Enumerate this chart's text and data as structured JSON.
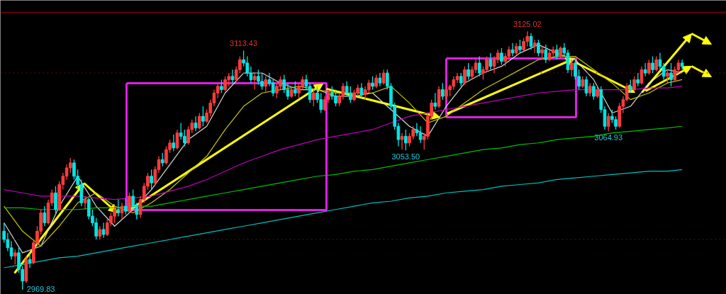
{
  "chart_data": {
    "type": "candlestick",
    "categories": [
      null,
      null,
      null,
      null,
      null,
      null,
      null,
      null,
      null,
      null,
      null,
      null,
      null,
      null,
      null,
      null,
      null,
      null,
      null,
      null,
      null,
      null,
      null,
      null,
      null,
      null,
      null,
      null,
      null,
      null,
      null,
      null,
      null,
      null,
      null,
      null,
      null,
      null,
      null,
      null,
      null,
      null,
      null,
      null,
      null,
      null,
      null,
      null,
      null,
      null,
      null,
      null,
      null,
      null,
      null,
      null,
      null,
      null,
      null,
      null,
      null,
      null,
      null,
      null,
      null,
      null,
      null,
      null,
      null,
      null,
      null,
      null,
      null,
      null,
      null,
      null,
      null,
      null,
      null,
      null,
      null,
      null,
      null,
      null,
      null,
      null,
      null,
      null,
      null,
      null,
      null,
      null,
      null,
      null,
      null,
      null,
      null,
      null,
      null,
      null,
      null,
      null,
      null,
      null,
      null,
      null,
      null,
      null,
      null,
      null,
      null,
      null,
      null,
      null,
      null,
      null,
      null,
      null,
      null,
      null,
      null,
      null,
      null,
      null,
      null,
      null,
      null,
      null,
      null,
      null,
      null,
      null,
      null,
      null,
      null,
      null,
      null,
      null,
      null,
      null,
      null,
      null,
      null,
      null,
      null,
      null,
      null,
      null,
      null,
      null,
      null,
      null,
      null,
      null,
      null,
      null,
      null,
      null,
      null,
      null,
      null,
      null,
      null,
      null,
      null,
      null,
      null,
      null,
      null,
      null,
      null,
      null,
      null,
      null,
      null,
      null,
      null,
      null,
      null,
      null,
      null,
      null,
      null,
      null,
      null
    ],
    "ohlc": [
      [
        3005,
        3010,
        2998,
        3000
      ],
      [
        3000,
        3004,
        2993,
        2995
      ],
      [
        2995,
        2999,
        2988,
        2990
      ],
      [
        2990,
        2994,
        2985,
        2992
      ],
      [
        2992,
        2995,
        2980,
        2982
      ],
      [
        2982,
        2984,
        2969.83,
        2975
      ],
      [
        2975,
        2990,
        2974,
        2988
      ],
      [
        2988,
        2992,
        2983,
        2986
      ],
      [
        2986,
        3000,
        2985,
        2998
      ],
      [
        2998,
        3008,
        2996,
        3005
      ],
      [
        3005,
        3018,
        3003,
        3016
      ],
      [
        3016,
        3020,
        3008,
        3010
      ],
      [
        3010,
        3024,
        3009,
        3022
      ],
      [
        3022,
        3030,
        3020,
        3028
      ],
      [
        3028,
        3032,
        3015,
        3018
      ],
      [
        3018,
        3035,
        3017,
        3033
      ],
      [
        3033,
        3040,
        3030,
        3038
      ],
      [
        3038,
        3045,
        3036,
        3043
      ],
      [
        3043,
        3049,
        3040,
        3046
      ],
      [
        3046,
        3048,
        3036,
        3038
      ],
      [
        3038,
        3042,
        3030,
        3033
      ],
      [
        3033,
        3036,
        3020,
        3022
      ],
      [
        3022,
        3026,
        3018,
        3024
      ],
      [
        3024,
        3025,
        3012,
        3014
      ],
      [
        3014,
        3018,
        3008,
        3010
      ],
      [
        3010,
        3013,
        3000,
        3002
      ],
      [
        3002,
        3008,
        3000,
        3006
      ],
      [
        3006,
        3010,
        3001,
        3003
      ],
      [
        3003,
        3012,
        3002,
        3010
      ],
      [
        3010,
        3016,
        3008,
        3014
      ],
      [
        3014,
        3020,
        3010,
        3018
      ],
      [
        3018,
        3024,
        3014,
        3016
      ],
      [
        3016,
        3022,
        3012,
        3020
      ],
      [
        3020,
        3025,
        3015,
        3017
      ],
      [
        3017,
        3028,
        3016,
        3026
      ],
      [
        3026,
        3030,
        3018,
        3020
      ],
      [
        3020,
        3022,
        3012,
        3015
      ],
      [
        3015,
        3026,
        3013,
        3024
      ],
      [
        3024,
        3034,
        3022,
        3032
      ],
      [
        3032,
        3040,
        3030,
        3038
      ],
      [
        3038,
        3042,
        3030,
        3034
      ],
      [
        3034,
        3044,
        3032,
        3042
      ],
      [
        3042,
        3050,
        3040,
        3048
      ],
      [
        3048,
        3052,
        3044,
        3046
      ],
      [
        3046,
        3056,
        3045,
        3054
      ],
      [
        3054,
        3060,
        3052,
        3058
      ],
      [
        3058,
        3063,
        3053,
        3055
      ],
      [
        3055,
        3066,
        3054,
        3064
      ],
      [
        3064,
        3070,
        3060,
        3062
      ],
      [
        3062,
        3066,
        3056,
        3058
      ],
      [
        3058,
        3068,
        3057,
        3066
      ],
      [
        3066,
        3072,
        3064,
        3070
      ],
      [
        3070,
        3074,
        3065,
        3067
      ],
      [
        3067,
        3076,
        3066,
        3074
      ],
      [
        3074,
        3080,
        3068,
        3071
      ],
      [
        3071,
        3078,
        3070,
        3076
      ],
      [
        3076,
        3084,
        3074,
        3082
      ],
      [
        3082,
        3090,
        3080,
        3088
      ],
      [
        3088,
        3094,
        3085,
        3092
      ],
      [
        3092,
        3096,
        3088,
        3090
      ],
      [
        3090,
        3098,
        3089,
        3096
      ],
      [
        3096,
        3100,
        3092,
        3098
      ],
      [
        3098,
        3102,
        3094,
        3096
      ],
      [
        3096,
        3104,
        3095,
        3102
      ],
      [
        3102,
        3110,
        3100,
        3108
      ],
      [
        3108,
        3113.43,
        3104,
        3106
      ],
      [
        3106,
        3110,
        3098,
        3100
      ],
      [
        3100,
        3104,
        3094,
        3096
      ],
      [
        3096,
        3100,
        3090,
        3098
      ],
      [
        3098,
        3102,
        3093,
        3095
      ],
      [
        3095,
        3100,
        3090,
        3092
      ],
      [
        3092,
        3098,
        3088,
        3096
      ],
      [
        3096,
        3100,
        3092,
        3094
      ],
      [
        3094,
        3096,
        3086,
        3088
      ],
      [
        3088,
        3094,
        3085,
        3092
      ],
      [
        3092,
        3098,
        3090,
        3096
      ],
      [
        3096,
        3099,
        3088,
        3090
      ],
      [
        3090,
        3094,
        3084,
        3086
      ],
      [
        3086,
        3092,
        3085,
        3090
      ],
      [
        3090,
        3095,
        3086,
        3088
      ],
      [
        3088,
        3094,
        3085,
        3092
      ],
      [
        3092,
        3098,
        3090,
        3096
      ],
      [
        3096,
        3099,
        3090,
        3092
      ],
      [
        3092,
        3094,
        3082,
        3084
      ],
      [
        3084,
        3090,
        3080,
        3088
      ],
      [
        3088,
        3092,
        3082,
        3084
      ],
      [
        3084,
        3088,
        3076,
        3078
      ],
      [
        3078,
        3086,
        3077,
        3084
      ],
      [
        3084,
        3090,
        3082,
        3088
      ],
      [
        3088,
        3092,
        3084,
        3086
      ],
      [
        3086,
        3090,
        3080,
        3082
      ],
      [
        3082,
        3088,
        3080,
        3086
      ],
      [
        3086,
        3094,
        3084,
        3092
      ],
      [
        3092,
        3095,
        3086,
        3088
      ],
      [
        3088,
        3092,
        3082,
        3084
      ],
      [
        3084,
        3090,
        3083,
        3088
      ],
      [
        3088,
        3093,
        3086,
        3091
      ],
      [
        3091,
        3094,
        3085,
        3087
      ],
      [
        3087,
        3092,
        3084,
        3090
      ],
      [
        3090,
        3096,
        3088,
        3094
      ],
      [
        3094,
        3098,
        3090,
        3092
      ],
      [
        3092,
        3099,
        3091,
        3097
      ],
      [
        3097,
        3100,
        3092,
        3094
      ],
      [
        3094,
        3102,
        3093,
        3100
      ],
      [
        3100,
        3102,
        3090,
        3092
      ],
      [
        3092,
        3094,
        3078,
        3080
      ],
      [
        3080,
        3082,
        3066,
        3068
      ],
      [
        3068,
        3070,
        3056,
        3060
      ],
      [
        3060,
        3064,
        3054,
        3062
      ],
      [
        3062,
        3066,
        3053.5,
        3058
      ],
      [
        3058,
        3064,
        3056,
        3062
      ],
      [
        3062,
        3068,
        3060,
        3066
      ],
      [
        3066,
        3070,
        3062,
        3064
      ],
      [
        3064,
        3068,
        3058,
        3060
      ],
      [
        3060,
        3064,
        3054,
        3062
      ],
      [
        3062,
        3076,
        3060,
        3074
      ],
      [
        3074,
        3084,
        3072,
        3082
      ],
      [
        3082,
        3088,
        3078,
        3080
      ],
      [
        3080,
        3092,
        3079,
        3090
      ],
      [
        3090,
        3094,
        3084,
        3086
      ],
      [
        3086,
        3092,
        3084,
        3090
      ],
      [
        3090,
        3093,
        3086,
        3092
      ],
      [
        3092,
        3098,
        3090,
        3096
      ],
      [
        3096,
        3100,
        3094,
        3098
      ],
      [
        3098,
        3100,
        3092,
        3094
      ],
      [
        3094,
        3104,
        3093,
        3102
      ],
      [
        3102,
        3106,
        3096,
        3098
      ],
      [
        3098,
        3104,
        3096,
        3102
      ],
      [
        3102,
        3108,
        3100,
        3106
      ],
      [
        3106,
        3110,
        3098,
        3100
      ],
      [
        3100,
        3104,
        3096,
        3102
      ],
      [
        3102,
        3110,
        3101,
        3108
      ],
      [
        3108,
        3112,
        3102,
        3104
      ],
      [
        3104,
        3110,
        3100,
        3108
      ],
      [
        3108,
        3114,
        3106,
        3112
      ],
      [
        3112,
        3115,
        3105,
        3107
      ],
      [
        3107,
        3112,
        3104,
        3110
      ],
      [
        3110,
        3116,
        3108,
        3114
      ],
      [
        3114,
        3118,
        3110,
        3112
      ],
      [
        3112,
        3118,
        3111,
        3116
      ],
      [
        3116,
        3120,
        3112,
        3114
      ],
      [
        3114,
        3121,
        3113,
        3119
      ],
      [
        3119,
        3125.02,
        3116,
        3122
      ],
      [
        3122,
        3124,
        3114,
        3116
      ],
      [
        3116,
        3120,
        3112,
        3118
      ],
      [
        3118,
        3120,
        3110,
        3112
      ],
      [
        3112,
        3116,
        3108,
        3114
      ],
      [
        3114,
        3117,
        3106,
        3108
      ],
      [
        3108,
        3114,
        3107,
        3112
      ],
      [
        3112,
        3116,
        3110,
        3114
      ],
      [
        3114,
        3117,
        3108,
        3110
      ],
      [
        3110,
        3116,
        3109,
        3115
      ],
      [
        3115,
        3118,
        3110,
        3112
      ],
      [
        3112,
        3114,
        3100,
        3102
      ],
      [
        3102,
        3108,
        3098,
        3106
      ],
      [
        3106,
        3108,
        3096,
        3098
      ],
      [
        3098,
        3102,
        3090,
        3092
      ],
      [
        3092,
        3098,
        3091,
        3096
      ],
      [
        3096,
        3098,
        3086,
        3088
      ],
      [
        3088,
        3094,
        3086,
        3092
      ],
      [
        3092,
        3094,
        3084,
        3086
      ],
      [
        3086,
        3092,
        3085,
        3090
      ],
      [
        3090,
        3092,
        3076,
        3078
      ],
      [
        3078,
        3080,
        3066,
        3068
      ],
      [
        3068,
        3076,
        3064.93,
        3074
      ],
      [
        3074,
        3078,
        3070,
        3072
      ],
      [
        3072,
        3074,
        3066,
        3068
      ],
      [
        3068,
        3082,
        3067,
        3080
      ],
      [
        3080,
        3086,
        3076,
        3084
      ],
      [
        3084,
        3094,
        3083,
        3092
      ],
      [
        3092,
        3096,
        3088,
        3090
      ],
      [
        3090,
        3098,
        3089,
        3096
      ],
      [
        3096,
        3100,
        3092,
        3094
      ],
      [
        3094,
        3104,
        3093,
        3102
      ],
      [
        3102,
        3106,
        3098,
        3100
      ],
      [
        3100,
        3108,
        3099,
        3106
      ],
      [
        3106,
        3110,
        3100,
        3102
      ],
      [
        3102,
        3110,
        3101,
        3108
      ],
      [
        3108,
        3112,
        3102,
        3104
      ],
      [
        3104,
        3106,
        3096,
        3098
      ],
      [
        3098,
        3102,
        3094,
        3100
      ],
      [
        3100,
        3106,
        3092,
        3096
      ],
      [
        3096,
        3104,
        3095,
        3102
      ],
      [
        3102,
        3108,
        3100,
        3106
      ],
      [
        3106,
        3108,
        3102,
        3104
      ]
    ],
    "series": [
      {
        "type": "line",
        "color": "#d8d8d8",
        "values": [
          3010,
          null,
          null,
          null,
          null,
          2992,
          null,
          null,
          null,
          null,
          2996,
          null,
          null,
          null,
          null,
          3020,
          null,
          null,
          null,
          null,
          3038,
          null,
          null,
          null,
          null,
          3020,
          null,
          null,
          null,
          null,
          3008,
          null,
          null,
          null,
          null,
          3018,
          null,
          null,
          null,
          null,
          3030,
          null,
          null,
          null,
          null,
          3045,
          null,
          null,
          null,
          null,
          3060,
          null,
          null,
          null,
          null,
          3068,
          null,
          null,
          null,
          null,
          3088,
          null,
          null,
          null,
          null,
          3100,
          null,
          null,
          null,
          null,
          3100,
          null,
          null,
          null,
          null,
          3094,
          null,
          null,
          null,
          null,
          3090,
          null,
          null,
          null,
          null,
          3090,
          null,
          null,
          null,
          null,
          3086,
          null,
          null,
          null,
          null,
          3086,
          null,
          null,
          null,
          null,
          3088,
          null,
          null,
          null,
          null,
          null,
          null,
          null,
          null,
          null,
          3068,
          null,
          null,
          null,
          null,
          3062,
          null,
          null,
          null,
          null,
          3080,
          null,
          null,
          null,
          null,
          3094,
          null,
          null,
          null,
          null,
          3100,
          null,
          null,
          null,
          null,
          3104,
          null,
          null,
          null,
          null,
          3112,
          null,
          null,
          null,
          null,
          3117,
          null,
          null,
          null,
          null,
          3112,
          null,
          null,
          null,
          null,
          3108,
          null,
          null,
          null,
          null,
          3096,
          null,
          null,
          null,
          null,
          3076,
          null,
          null,
          null,
          null,
          3080,
          null,
          null,
          null,
          null,
          3094,
          null,
          null,
          null,
          null,
          3102,
          null,
          null,
          null,
          3100
        ]
      },
      {
        "type": "line",
        "color": "#c8c800",
        "values": [
          3020,
          null,
          null,
          null,
          null,
          3005,
          null,
          null,
          null,
          null,
          2996,
          null,
          null,
          null,
          null,
          3008,
          null,
          null,
          null,
          null,
          3022,
          null,
          null,
          null,
          null,
          3028,
          null,
          null,
          null,
          null,
          3020,
          null,
          null,
          null,
          null,
          3016,
          null,
          null,
          null,
          null,
          3022,
          null,
          null,
          null,
          null,
          3030,
          null,
          null,
          null,
          null,
          3040,
          null,
          null,
          null,
          null,
          3050,
          null,
          null,
          null,
          null,
          3066,
          null,
          null,
          null,
          null,
          3080,
          null,
          null,
          null,
          null,
          3088,
          null,
          null,
          null,
          null,
          3090,
          null,
          null,
          null,
          null,
          3092,
          null,
          null,
          null,
          null,
          3090,
          null,
          null,
          null,
          null,
          3088,
          null,
          null,
          null,
          null,
          3088,
          null,
          null,
          null,
          null,
          3088,
          null,
          null,
          null,
          null,
          3092,
          null,
          null,
          null,
          null,
          3082,
          null,
          null,
          null,
          null,
          3070,
          null,
          null,
          null,
          null,
          3074,
          null,
          null,
          null,
          null,
          3082,
          null,
          null,
          null,
          null,
          3090,
          null,
          null,
          null,
          null,
          3096,
          null,
          null,
          null,
          null,
          3102,
          null,
          null,
          null,
          null,
          3108,
          null,
          null,
          null,
          null,
          3110,
          null,
          null,
          null,
          null,
          3110,
          null,
          null,
          null,
          null,
          3102,
          null,
          null,
          null,
          null,
          3094,
          null,
          null,
          null,
          null,
          3084,
          null,
          null,
          null,
          null,
          3088,
          null,
          null,
          null,
          null,
          3094,
          null,
          null,
          null,
          3096
        ]
      },
      {
        "type": "line",
        "color": "#c000c0",
        "values": [
          3030,
          null,
          null,
          null,
          null,
          3028,
          null,
          null,
          null,
          null,
          3026,
          null,
          null,
          null,
          null,
          3026,
          null,
          null,
          null,
          null,
          3026,
          null,
          null,
          null,
          null,
          3025,
          null,
          null,
          null,
          null,
          3024,
          null,
          null,
          null,
          null,
          3025,
          null,
          null,
          null,
          null,
          3026,
          null,
          null,
          null,
          null,
          3029,
          null,
          null,
          null,
          null,
          3032,
          null,
          null,
          null,
          null,
          3036,
          null,
          null,
          null,
          null,
          3041,
          null,
          null,
          null,
          null,
          3046,
          null,
          null,
          null,
          null,
          3050,
          null,
          null,
          null,
          null,
          3054,
          null,
          null,
          null,
          null,
          3057,
          null,
          null,
          null,
          null,
          3060,
          null,
          null,
          null,
          null,
          3062,
          null,
          null,
          null,
          null,
          3064,
          null,
          null,
          null,
          null,
          3066,
          null,
          null,
          null,
          null,
          3070,
          null,
          null,
          null,
          null,
          3074,
          null,
          null,
          null,
          null,
          3076,
          null,
          null,
          null,
          null,
          3078,
          null,
          null,
          null,
          null,
          3080,
          null,
          null,
          null,
          null,
          3082,
          null,
          null,
          null,
          null,
          3084,
          null,
          null,
          null,
          null,
          3086,
          null,
          null,
          null,
          null,
          3088,
          null,
          null,
          null,
          null,
          3089,
          null,
          null,
          null,
          null,
          3090,
          null,
          null,
          null,
          null,
          3090,
          null,
          null,
          null,
          null,
          3090,
          null,
          null,
          null,
          null,
          3090,
          null,
          null,
          null,
          null,
          3091,
          null,
          null,
          null,
          null,
          3091,
          null,
          null,
          null,
          3092
        ]
      },
      {
        "type": "line",
        "color": "#00c000",
        "values": [
          3019,
          null,
          null,
          null,
          null,
          3019,
          null,
          null,
          null,
          null,
          3018,
          null,
          null,
          null,
          null,
          3018,
          null,
          null,
          null,
          null,
          3018,
          null,
          null,
          null,
          null,
          3019,
          null,
          null,
          null,
          null,
          3019,
          null,
          null,
          null,
          null,
          3020,
          null,
          null,
          null,
          null,
          3020,
          null,
          null,
          null,
          null,
          3022,
          null,
          null,
          null,
          null,
          3024,
          null,
          null,
          null,
          null,
          3026,
          null,
          null,
          null,
          null,
          3028,
          null,
          null,
          null,
          null,
          3030,
          null,
          null,
          null,
          null,
          3032,
          null,
          null,
          null,
          null,
          3034,
          null,
          null,
          null,
          null,
          3036,
          null,
          null,
          null,
          null,
          3038,
          null,
          null,
          null,
          null,
          3039,
          null,
          null,
          null,
          null,
          3041,
          null,
          null,
          null,
          null,
          3042,
          null,
          null,
          null,
          null,
          3044,
          null,
          null,
          null,
          null,
          3046,
          null,
          null,
          null,
          null,
          3048,
          null,
          null,
          null,
          null,
          3050,
          null,
          null,
          null,
          null,
          3052,
          null,
          null,
          null,
          null,
          3054,
          null,
          null,
          null,
          null,
          3055,
          null,
          null,
          null,
          null,
          3057,
          null,
          null,
          null,
          null,
          3058,
          null,
          null,
          null,
          null,
          3060,
          null,
          null,
          null,
          null,
          3061,
          null,
          null,
          null,
          null,
          3062,
          null,
          null,
          null,
          null,
          3064,
          null,
          null,
          null,
          null,
          3065,
          null,
          null,
          null,
          null,
          3066,
          null,
          null,
          null,
          null,
          3067,
          null,
          null,
          null,
          3068
        ]
      },
      {
        "type": "line",
        "color": "#00c0c0",
        "values": [
          2983,
          null,
          null,
          null,
          null,
          2985,
          null,
          null,
          null,
          null,
          2987,
          null,
          null,
          null,
          null,
          2989,
          null,
          null,
          null,
          null,
          2990,
          null,
          null,
          null,
          null,
          2992,
          null,
          null,
          null,
          null,
          2994,
          null,
          null,
          null,
          null,
          2996,
          null,
          null,
          null,
          null,
          2998,
          null,
          null,
          null,
          null,
          3000,
          null,
          null,
          null,
          null,
          3002,
          null,
          null,
          null,
          null,
          3004,
          null,
          null,
          null,
          null,
          3006,
          null,
          null,
          null,
          null,
          3008,
          null,
          null,
          null,
          null,
          3010,
          null,
          null,
          null,
          null,
          3012,
          null,
          null,
          null,
          null,
          3014,
          null,
          null,
          null,
          null,
          3016,
          null,
          null,
          null,
          null,
          3018,
          null,
          null,
          null,
          null,
          3020,
          null,
          null,
          null,
          null,
          3022,
          null,
          null,
          null,
          null,
          3023,
          null,
          null,
          null,
          null,
          3025,
          null,
          null,
          null,
          null,
          3026,
          null,
          null,
          null,
          null,
          3028,
          null,
          null,
          null,
          null,
          3029,
          null,
          null,
          null,
          null,
          3030,
          null,
          null,
          null,
          null,
          3032,
          null,
          null,
          null,
          null,
          3033,
          null,
          null,
          null,
          null,
          3034,
          null,
          null,
          null,
          null,
          3036,
          null,
          null,
          null,
          null,
          3037,
          null,
          null,
          null,
          null,
          3038,
          null,
          null,
          null,
          null,
          3039,
          null,
          null,
          null,
          null,
          3040,
          null,
          null,
          null,
          null,
          3041,
          null,
          null,
          null,
          null,
          3041,
          null,
          null,
          null,
          3042
        ]
      }
    ],
    "ref_lines": [
      {
        "axis": "y",
        "value": 3100,
        "color": "#800000",
        "line_style": "dotted"
      },
      {
        "axis": "y",
        "value": 3000,
        "color": "#800000",
        "line_style": "dotted"
      },
      {
        "axis": "y",
        "value": 3136.5,
        "color": "#b00000",
        "line_style": "solid"
      }
    ],
    "annotations": [
      {
        "text": "3113.43",
        "y": 3113.43
      },
      {
        "text": "3125.02",
        "y": 3125.02
      },
      {
        "text": "3053.50",
        "y": 3053.5
      },
      {
        "text": "3064.93",
        "y": 3064.93
      },
      "2969.83"
    ]
  }
}
